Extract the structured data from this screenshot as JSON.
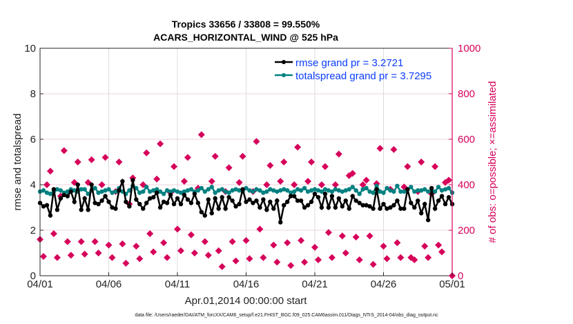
{
  "chart_data": {
    "type": "line",
    "title": [
      "Tropics 33656 / 33808 = 99.550%",
      "ACARS_HORIZONTAL_WIND @ 525 hPa"
    ],
    "xlabel": "Apr.01,2014 00:00:00 start",
    "ylabel": "rmse and totalspread",
    "ylabel_right": "# of obs: o=possible; ×=assimilated",
    "footer": "data file: /Users/raeder/DAI/ATM_forcXX/CAM6_setup/f.e21.FHIST_BGC.f09_025.CAM6assim.011/Diags_NTrS_2014-04/obs_diag_output.nc",
    "xlim_days": [
      0,
      30
    ],
    "x_step_days": 0.25,
    "x_ticks": [
      "04/01",
      "04/06",
      "04/11",
      "04/16",
      "04/21",
      "04/26",
      "05/01"
    ],
    "ylim": [
      0,
      10
    ],
    "y_ticks": [
      "0",
      "2",
      "4",
      "6",
      "8",
      "10"
    ],
    "ylim_right": [
      0,
      1000
    ],
    "y_ticks_right": [
      "0",
      "200",
      "400",
      "600",
      "800",
      "1000"
    ],
    "grid": true,
    "legend_position": "top-right",
    "colors": {
      "rmse": "#000000",
      "totalspread": "#008080",
      "obs": "#d6005a",
      "legend_text": "#0a3cff",
      "right_axis": "#d6005a"
    },
    "series": [
      {
        "name": "rmse grand pr = 3.2721",
        "axis": "left",
        "values": [
          3.2,
          3.05,
          3.1,
          2.65,
          3.8,
          2.9,
          3.4,
          3.55,
          3.5,
          3.7,
          3.25,
          4.0,
          2.9,
          3.4,
          2.9,
          4.0,
          3.2,
          3.15,
          3.3,
          3.5,
          3.25,
          3.0,
          2.95,
          3.75,
          4.15,
          3.25,
          3.05,
          4.2,
          3.35,
          3.15,
          2.95,
          3.2,
          3.4,
          3.45,
          3.65,
          3.0,
          3.25,
          3.2,
          3.55,
          3.15,
          3.4,
          3.15,
          3.55,
          3.35,
          3.2,
          3.6,
          3.2,
          2.8,
          2.65,
          3.35,
          2.75,
          3.4,
          2.95,
          3.45,
          2.95,
          3.45,
          3.3,
          3.05,
          3.15,
          3.8,
          3.25,
          3.35,
          3.2,
          3.3,
          3.0,
          3.35,
          2.9,
          3.25,
          2.95,
          3.3,
          2.35,
          3.1,
          3.25,
          3.5,
          3.5,
          3.3,
          3.3,
          3.0,
          3.1,
          3.25,
          3.6,
          3.45,
          3.0,
          3.6,
          3.0,
          3.5,
          3.0,
          3.4,
          3.05,
          3.3,
          2.95,
          3.5,
          3.3,
          3.2,
          3.1,
          3.1,
          3.05,
          2.95,
          3.8,
          2.95,
          3.15,
          2.95,
          3.0,
          3.1,
          3.3,
          2.95,
          2.95,
          3.8,
          3.2,
          3.0,
          3.3,
          2.75,
          3.15,
          2.45,
          3.85,
          2.95,
          3.3,
          3.5,
          3.15,
          3.45,
          3.15
        ]
      },
      {
        "name": "totalspread grand pr = 3.7295",
        "axis": "left",
        "values": [
          3.7,
          3.75,
          3.65,
          3.6,
          3.7,
          3.8,
          3.75,
          3.65,
          3.7,
          3.8,
          3.75,
          3.7,
          3.8,
          3.8,
          3.6,
          3.75,
          3.85,
          3.65,
          3.7,
          3.75,
          3.8,
          3.65,
          3.7,
          3.85,
          3.7,
          3.6,
          3.75,
          3.95,
          3.85,
          3.65,
          3.7,
          3.9,
          3.7,
          3.75,
          3.8,
          3.7,
          3.6,
          3.75,
          3.7,
          3.75,
          3.7,
          3.65,
          3.7,
          3.75,
          3.8,
          3.7,
          3.75,
          3.85,
          3.7,
          3.8,
          3.9,
          3.65,
          3.75,
          3.8,
          3.7,
          3.65,
          3.75,
          3.8,
          3.75,
          3.7,
          3.85,
          3.75,
          3.7,
          3.8,
          3.75,
          3.65,
          3.7,
          3.8,
          3.75,
          3.7,
          3.75,
          3.8,
          3.75,
          3.65,
          3.7,
          3.8,
          3.75,
          3.85,
          3.7,
          3.75,
          3.8,
          3.75,
          3.7,
          3.8,
          3.75,
          3.7,
          3.8,
          3.75,
          3.7,
          3.75,
          3.8,
          3.9,
          3.75,
          3.6,
          3.8,
          3.85,
          3.7,
          3.65,
          3.95,
          3.7,
          3.65,
          3.85,
          3.75,
          3.7,
          3.95,
          3.7,
          3.7,
          3.8,
          3.9,
          3.7,
          3.75,
          3.75,
          3.8,
          3.7,
          3.75,
          3.7,
          3.9,
          3.75,
          3.8,
          3.85,
          3.65
        ]
      },
      {
        "name": "# of obs",
        "axis": "right",
        "values": [
          160,
          85,
          400,
          460,
          185,
          80,
          350,
          550,
          150,
          90,
          410,
          500,
          150,
          95,
          410,
          510,
          150,
          100,
          400,
          520,
          135,
          80,
          370,
          500,
          140,
          55,
          315,
          430,
          130,
          75,
          400,
          540,
          185,
          105,
          425,
          580,
          145,
          80,
          365,
          480,
          205,
          110,
          415,
          520,
          180,
          100,
          385,
          620,
          150,
          90,
          415,
          525,
          110,
          40,
          370,
          475,
          150,
          65,
          410,
          525,
          155,
          75,
          370,
          590,
          205,
          80,
          400,
          485,
          135,
          60,
          415,
          500,
          145,
          45,
          400,
          565,
          155,
          60,
          415,
          500,
          125,
          70,
          400,
          480,
          190,
          80,
          400,
          535,
          175,
          100,
          440,
          450,
          170,
          70,
          400,
          420,
          175,
          50,
          405,
          560,
          130,
          75,
          380,
          555,
          145,
          80,
          390,
          480,
          80,
          70,
          370,
          500,
          130,
          80,
          360,
          480,
          135,
          105,
          410,
          420,
          0
        ]
      }
    ]
  }
}
